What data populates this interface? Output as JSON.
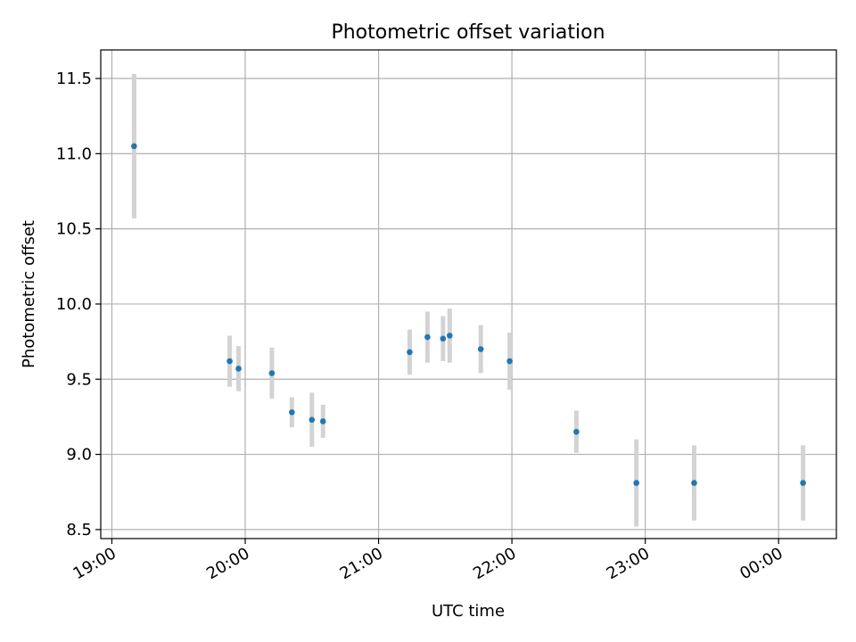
{
  "chart_data": {
    "type": "scatter",
    "title": "Photometric offset variation",
    "xlabel": "UTC time",
    "ylabel": "Photometric offset",
    "x_ticks": [
      "19:00",
      "20:00",
      "21:00",
      "22:00",
      "23:00",
      "00:00"
    ],
    "y_ticks": [
      "8.5",
      "9.0",
      "9.5",
      "10.0",
      "10.5",
      "11.0",
      "11.5"
    ],
    "xlim": [
      "18:55",
      "00:26"
    ],
    "ylim": [
      8.44,
      11.69
    ],
    "grid": true,
    "point_color": "#1f77b4",
    "errorbar_color": "#d3d3d3",
    "series": [
      {
        "points": [
          {
            "x": "19:10",
            "y": 11.05,
            "yerr": 0.48
          },
          {
            "x": "19:53",
            "y": 9.62,
            "yerr": 0.17
          },
          {
            "x": "19:57",
            "y": 9.57,
            "yerr": 0.15
          },
          {
            "x": "20:12",
            "y": 9.54,
            "yerr": 0.17
          },
          {
            "x": "20:21",
            "y": 9.28,
            "yerr": 0.1
          },
          {
            "x": "20:30",
            "y": 9.23,
            "yerr": 0.18
          },
          {
            "x": "20:35",
            "y": 9.22,
            "yerr": 0.11
          },
          {
            "x": "21:14",
            "y": 9.68,
            "yerr": 0.15
          },
          {
            "x": "21:22",
            "y": 9.78,
            "yerr": 0.17
          },
          {
            "x": "21:29",
            "y": 9.77,
            "yerr": 0.15
          },
          {
            "x": "21:32",
            "y": 9.79,
            "yerr": 0.18
          },
          {
            "x": "21:46",
            "y": 9.7,
            "yerr": 0.16
          },
          {
            "x": "21:59",
            "y": 9.62,
            "yerr": 0.19
          },
          {
            "x": "22:29",
            "y": 9.15,
            "yerr": 0.14
          },
          {
            "x": "22:56",
            "y": 8.81,
            "yerr": 0.29
          },
          {
            "x": "23:22",
            "y": 8.81,
            "yerr": 0.25
          },
          {
            "x": "00:11",
            "y": 8.81,
            "yerr": 0.25
          }
        ]
      }
    ]
  }
}
